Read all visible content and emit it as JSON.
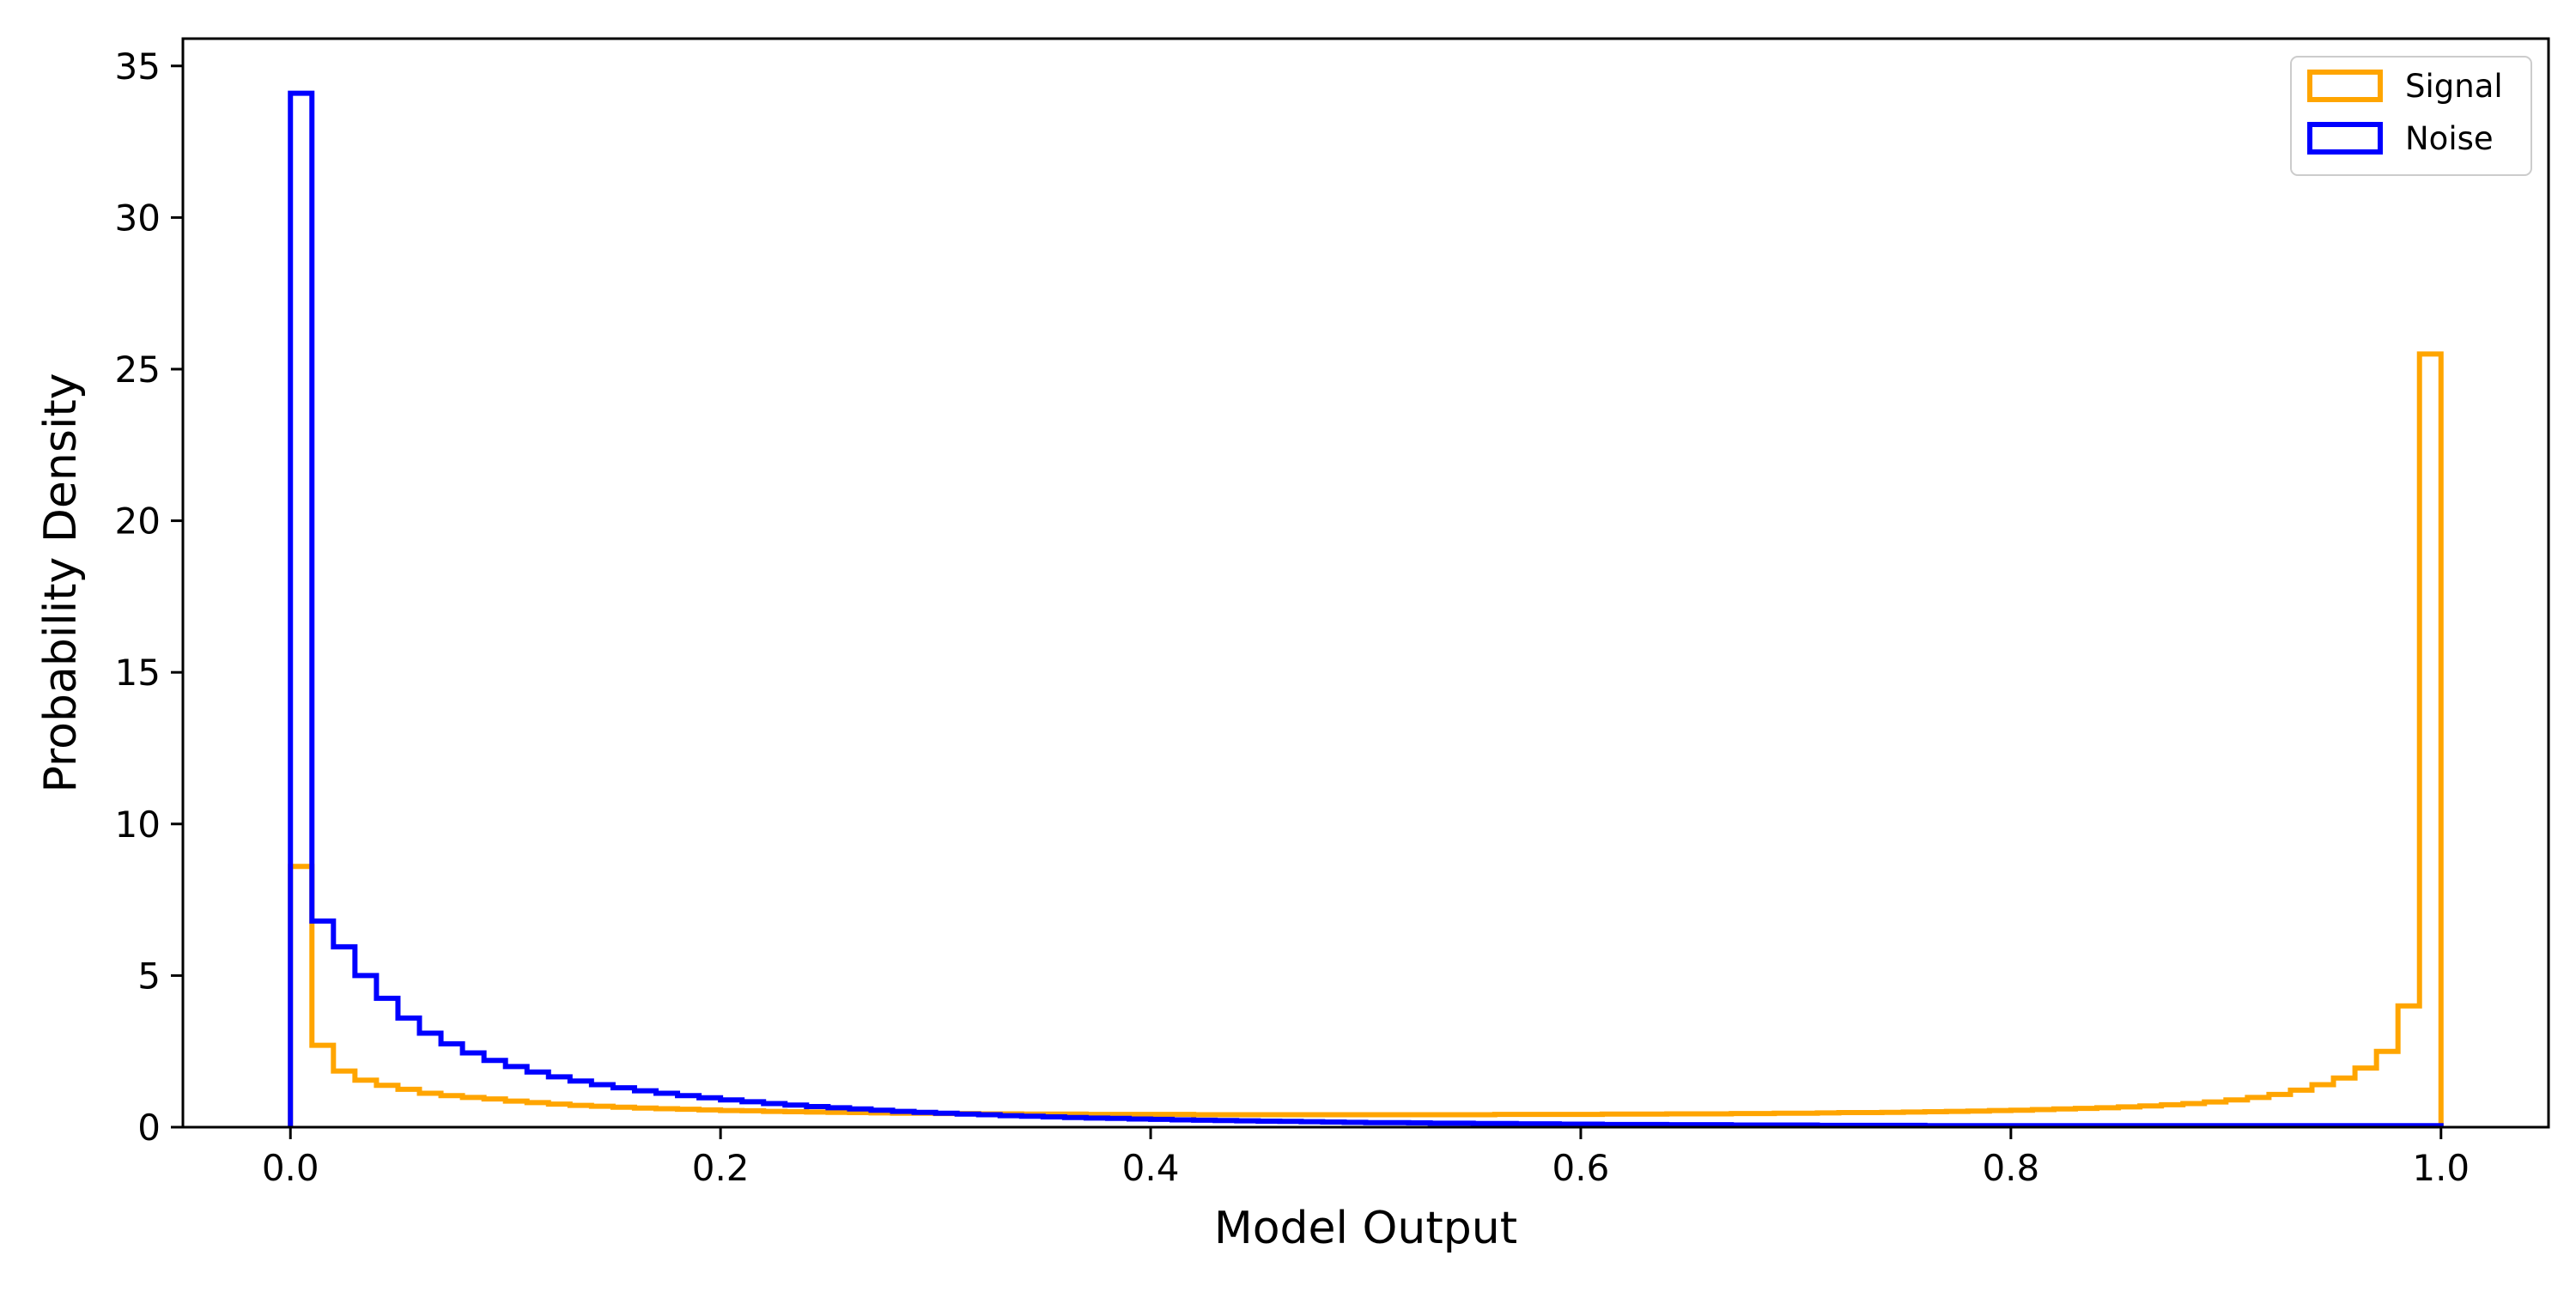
{
  "chart_data": {
    "type": "histogram",
    "title": "",
    "xlabel": "Model Output",
    "ylabel": "Probability Density",
    "xlim": [
      -0.05,
      1.05
    ],
    "ylim": [
      0,
      35.9
    ],
    "xticks": [
      0.0,
      0.2,
      0.4,
      0.6,
      0.8,
      1.0
    ],
    "xtick_labels": [
      "0.0",
      "0.2",
      "0.4",
      "0.6",
      "0.8",
      "1.0"
    ],
    "yticks": [
      0,
      5,
      10,
      15,
      20,
      25,
      30,
      35
    ],
    "ytick_labels": [
      "0",
      "5",
      "10",
      "15",
      "20",
      "25",
      "30",
      "35"
    ],
    "grid": false,
    "legend_position": "top-right",
    "bins": {
      "start": 0.0,
      "end": 1.0,
      "count": 100
    },
    "series": [
      {
        "name": "Signal",
        "color": "#FFA500",
        "style": "step",
        "values": [
          8.6,
          2.7,
          1.85,
          1.55,
          1.38,
          1.25,
          1.12,
          1.04,
          0.98,
          0.93,
          0.86,
          0.81,
          0.76,
          0.72,
          0.69,
          0.66,
          0.63,
          0.61,
          0.59,
          0.57,
          0.55,
          0.54,
          0.52,
          0.51,
          0.5,
          0.49,
          0.48,
          0.47,
          0.46,
          0.46,
          0.45,
          0.45,
          0.44,
          0.44,
          0.43,
          0.43,
          0.43,
          0.42,
          0.42,
          0.42,
          0.42,
          0.42,
          0.41,
          0.41,
          0.41,
          0.41,
          0.41,
          0.41,
          0.41,
          0.41,
          0.41,
          0.41,
          0.41,
          0.41,
          0.41,
          0.41,
          0.42,
          0.42,
          0.42,
          0.42,
          0.42,
          0.43,
          0.43,
          0.43,
          0.44,
          0.44,
          0.44,
          0.45,
          0.45,
          0.46,
          0.46,
          0.47,
          0.48,
          0.48,
          0.49,
          0.5,
          0.51,
          0.52,
          0.53,
          0.55,
          0.56,
          0.58,
          0.6,
          0.62,
          0.64,
          0.67,
          0.7,
          0.74,
          0.78,
          0.83,
          0.9,
          0.98,
          1.08,
          1.22,
          1.4,
          1.62,
          1.95,
          2.5,
          4.0,
          25.5
        ]
      },
      {
        "name": "Noise",
        "color": "#0000FF",
        "style": "step",
        "values": [
          34.1,
          6.8,
          5.95,
          5.0,
          4.25,
          3.6,
          3.1,
          2.75,
          2.45,
          2.2,
          2.0,
          1.82,
          1.66,
          1.52,
          1.4,
          1.3,
          1.2,
          1.12,
          1.04,
          0.97,
          0.9,
          0.84,
          0.78,
          0.73,
          0.68,
          0.64,
          0.6,
          0.56,
          0.52,
          0.49,
          0.46,
          0.43,
          0.41,
          0.38,
          0.36,
          0.34,
          0.32,
          0.3,
          0.29,
          0.27,
          0.26,
          0.24,
          0.23,
          0.22,
          0.21,
          0.2,
          0.19,
          0.18,
          0.17,
          0.16,
          0.15,
          0.15,
          0.14,
          0.13,
          0.13,
          0.12,
          0.12,
          0.11,
          0.11,
          0.1,
          0.1,
          0.09,
          0.09,
          0.09,
          0.08,
          0.08,
          0.08,
          0.07,
          0.07,
          0.07,
          0.07,
          0.06,
          0.06,
          0.06,
          0.06,
          0.06,
          0.05,
          0.05,
          0.05,
          0.05,
          0.05,
          0.05,
          0.05,
          0.05,
          0.05,
          0.05,
          0.05,
          0.05,
          0.05,
          0.05,
          0.05,
          0.05,
          0.05,
          0.05,
          0.05,
          0.05,
          0.05,
          0.05,
          0.05,
          0.05
        ]
      }
    ]
  }
}
